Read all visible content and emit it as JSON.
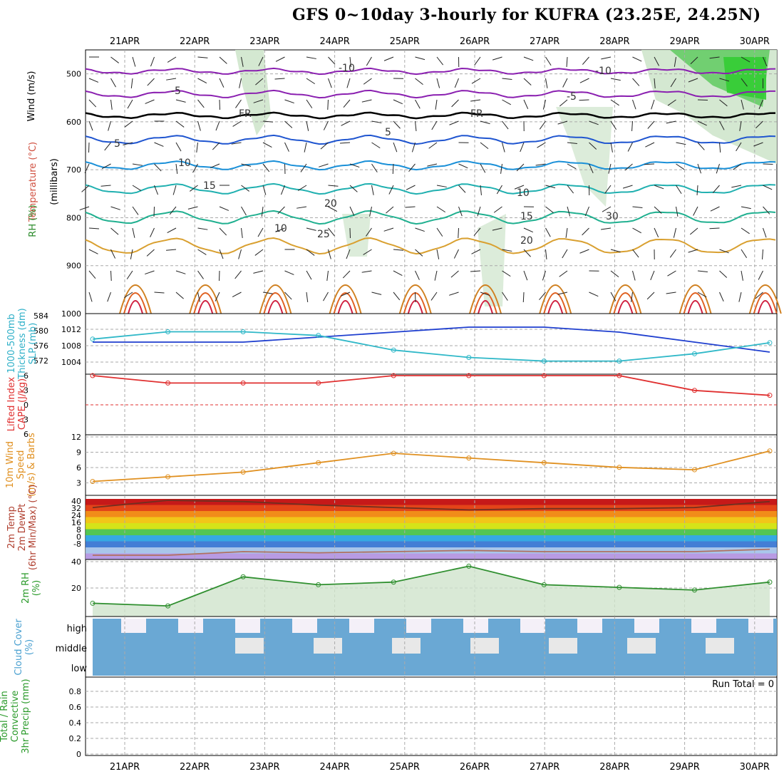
{
  "title": "GFS 0~10day 3-hourly for KUFRA (23.25E, 24.25N)",
  "dates": [
    "21APR",
    "22APR",
    "23APR",
    "24APR",
    "25APR",
    "26APR",
    "27APR",
    "28APR",
    "29APR",
    "30APR"
  ],
  "run_total": "Run Total = 0",
  "colors": {
    "grid": "#aaaaaa",
    "slp": "#1f3fcf",
    "thick": "#2fb8c8",
    "li": "#e03030",
    "wind": "#e09020",
    "temp": "#703020",
    "dew": "#b07060",
    "rh": "#2f8f2f",
    "cloud": "#6aa8d4",
    "rhfill": "#cfe4cc"
  },
  "panels": {
    "upper": {
      "ylabel_lines": [
        "Wind (m/s)",
        "Temperature (°C)",
        "(millibars)",
        "RH (%)"
      ],
      "ticks": [
        "500",
        "600",
        "700",
        "800",
        "900",
        "1000"
      ],
      "isotherm_labels": [
        "-10",
        "-5",
        "FR",
        "5",
        "10",
        "15",
        "20",
        "25",
        "-10",
        "-5",
        "FR",
        "5",
        "10",
        "15",
        "20",
        "30",
        "10"
      ]
    },
    "slp": {
      "ylabel_lines": [
        "1000-500mb",
        "Thickness (dm)",
        "SLP (mb)"
      ],
      "thick_ticks": [
        "584",
        "580",
        "576",
        "572"
      ],
      "slp_ticks": [
        "1012",
        "1008",
        "1004"
      ]
    },
    "li": {
      "ylabel_lines": [
        "Lifted Index",
        "CAPE (J/kg)"
      ],
      "ticks": [
        "-6",
        "-3",
        "0",
        "3",
        "6"
      ]
    },
    "wind": {
      "ylabel_lines": [
        "10m Wind",
        "Speed",
        "(m/s) & Barbs"
      ],
      "ticks": [
        "12",
        "9",
        "6",
        "3"
      ]
    },
    "temp": {
      "ylabel_lines": [
        "2m Temp",
        "2m DewPt",
        "(6hr Min/Max) (°C)"
      ],
      "ticks": [
        "40",
        "32",
        "24",
        "16",
        "8",
        "0",
        "-8"
      ]
    },
    "rh": {
      "ylabel_lines": [
        "2m RH",
        "(%)"
      ],
      "ticks": [
        "40",
        "20"
      ]
    },
    "cloud": {
      "ylabel_lines": [
        "Cloud Cover",
        "(%)"
      ],
      "levels": [
        "high",
        "middle",
        "low"
      ]
    },
    "precip": {
      "ylabel_lines": [
        "Total / Rain",
        "Convective",
        "3hr Precip (mm)"
      ],
      "ticks": [
        "0.8",
        "0.6",
        "0.4",
        "0.2",
        "0"
      ]
    }
  },
  "chart_data": [
    {
      "type": "line",
      "title": "1000-500mb Thickness (dm) / SLP (mb)",
      "x": [
        "21APR",
        "22APR",
        "23APR",
        "24APR",
        "25APR",
        "26APR",
        "27APR",
        "28APR",
        "29APR",
        "30APR"
      ],
      "series": [
        {
          "name": "SLP (mb)",
          "values": [
            1009,
            1009,
            1009,
            1010,
            1011,
            1012,
            1012,
            1011,
            1009,
            1007
          ]
        },
        {
          "name": "1000-500mb Thickness (dm)",
          "values": [
            579,
            581,
            581,
            580,
            576,
            574,
            573,
            573,
            575,
            578
          ]
        }
      ]
    },
    {
      "type": "line",
      "title": "Lifted Index",
      "x": [
        "21APR",
        "22APR",
        "23APR",
        "24APR",
        "25APR",
        "26APR",
        "27APR",
        "28APR",
        "29APR",
        "30APR"
      ],
      "series": [
        {
          "name": "Lifted Index",
          "values": [
            6,
            4.5,
            4.5,
            4.5,
            6,
            6,
            6,
            6,
            3,
            2
          ]
        }
      ]
    },
    {
      "type": "line",
      "title": "10m Wind Speed (m/s)",
      "x": [
        "21APR",
        "22APR",
        "23APR",
        "24APR",
        "25APR",
        "26APR",
        "27APR",
        "28APR",
        "29APR",
        "30APR"
      ],
      "series": [
        {
          "name": "Speed",
          "values": [
            2.5,
            3.5,
            4.5,
            6.5,
            8.5,
            7.5,
            6.5,
            5.5,
            5,
            9
          ]
        }
      ]
    },
    {
      "type": "area",
      "title": "2m Temp (°C)",
      "x": [
        "21APR",
        "22APR",
        "23APR",
        "24APR",
        "25APR",
        "26APR",
        "27APR",
        "28APR",
        "29APR",
        "30APR"
      ],
      "series": [
        {
          "name": "2m Temp",
          "values": [
            35,
            41,
            40,
            37,
            35,
            33,
            34,
            34,
            35,
            40
          ]
        },
        {
          "name": "2m DewPt",
          "values": [
            -5,
            -5,
            -2,
            -3,
            -2,
            -1,
            -2,
            -2,
            -2,
            0
          ]
        }
      ]
    },
    {
      "type": "area",
      "title": "2m RH (%)",
      "x": [
        "21APR",
        "22APR",
        "23APR",
        "24APR",
        "25APR",
        "26APR",
        "27APR",
        "28APR",
        "29APR",
        "30APR"
      ],
      "series": [
        {
          "name": "2m RH",
          "values": [
            10,
            8,
            30,
            24,
            26,
            38,
            24,
            22,
            20,
            26
          ]
        }
      ]
    },
    {
      "type": "bar",
      "title": "3hr Precip (mm)",
      "x": [
        "21APR",
        "22APR",
        "23APR",
        "24APR",
        "25APR",
        "26APR",
        "27APR",
        "28APR",
        "29APR",
        "30APR"
      ],
      "series": [
        {
          "name": "Total / Rain",
          "values": [
            0,
            0,
            0,
            0,
            0,
            0,
            0,
            0,
            0,
            0
          ]
        }
      ],
      "ylim": [
        0,
        0.9
      ]
    }
  ]
}
